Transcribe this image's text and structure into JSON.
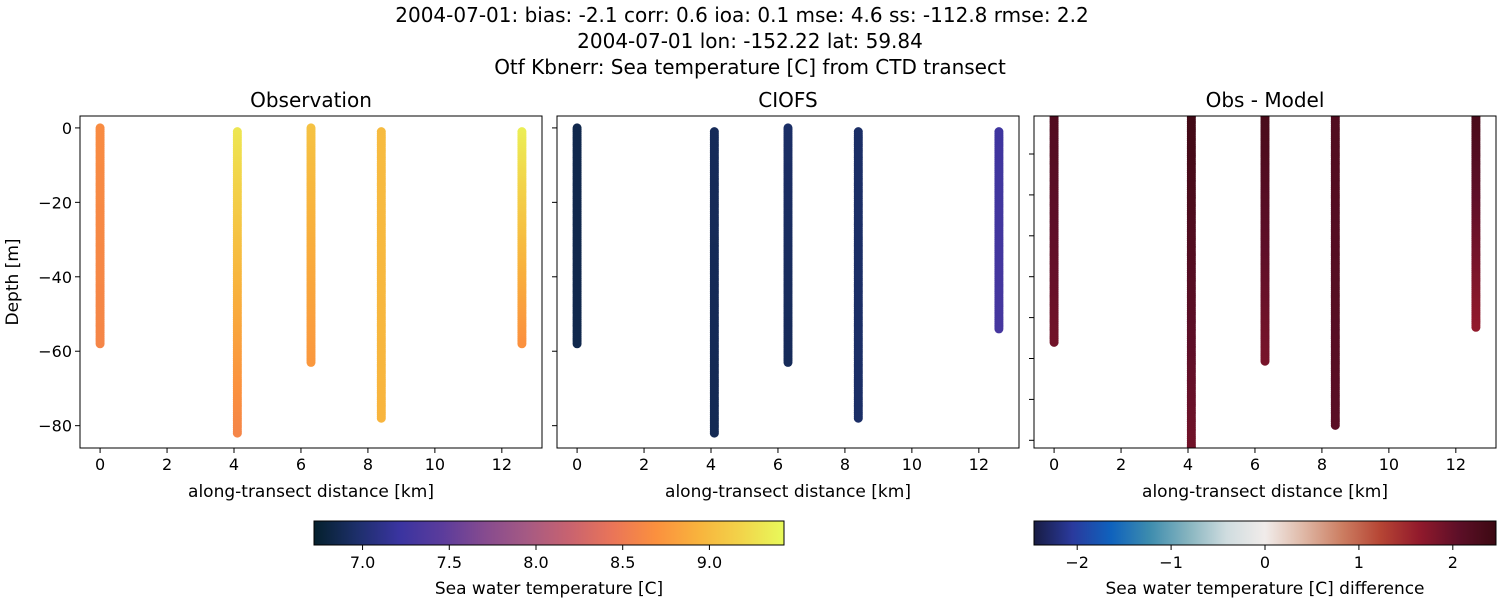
{
  "figure": {
    "title_lines": [
      "2004-07-01: bias: -2.1  corr: 0.6  ioa: 0.1  mse: 4.6  ss: -112.8  rmse: 2.2",
      "2004-07-01 lon: -152.22 lat: 59.84",
      "Otf Kbnerr: Sea temperature [C] from CTD transect"
    ]
  },
  "chart_data": [
    {
      "type": "scatter",
      "title": "Observation",
      "xlabel": "along-transect distance [km]",
      "ylabel": "Depth [m]",
      "xlim": [
        -0.6,
        13.2
      ],
      "ylim": [
        -86,
        3.2
      ],
      "xticks": [
        "0",
        "2",
        "4",
        "6",
        "8",
        "10",
        "12"
      ],
      "yticks": [
        "0",
        "−20",
        "−40",
        "−60",
        "−80"
      ],
      "colormap": "thermal",
      "profiles": [
        {
          "x": 0.0,
          "depth_top": 0,
          "depth_bottom": -58,
          "value_top": 8.65,
          "value_bottom": 8.6
        },
        {
          "x": 4.1,
          "depth_top": -1,
          "depth_bottom": -82,
          "value_top": 9.3,
          "value_bottom": 8.6
        },
        {
          "x": 6.3,
          "depth_top": 0,
          "depth_bottom": -63,
          "value_top": 9.05,
          "value_bottom": 8.75
        },
        {
          "x": 8.4,
          "depth_top": -1,
          "depth_bottom": -78,
          "value_top": 9.0,
          "value_bottom": 8.95
        },
        {
          "x": 12.6,
          "depth_top": -1,
          "depth_bottom": -58,
          "value_top": 9.35,
          "value_bottom": 8.7
        }
      ]
    },
    {
      "type": "scatter",
      "title": "CIOFS",
      "xlabel": "along-transect distance [km]",
      "xlim": [
        -0.6,
        13.2
      ],
      "ylim": [
        -86,
        3.2
      ],
      "xticks": [
        "0",
        "2",
        "4",
        "6",
        "8",
        "10",
        "12"
      ],
      "colormap": "thermal",
      "profiles": [
        {
          "x": 0.0,
          "depth_top": 0,
          "depth_bottom": -58,
          "value_top": 6.85,
          "value_bottom": 6.85
        },
        {
          "x": 4.1,
          "depth_top": -1,
          "depth_bottom": -82,
          "value_top": 6.9,
          "value_bottom": 6.88
        },
        {
          "x": 6.3,
          "depth_top": 0,
          "depth_bottom": -63,
          "value_top": 6.95,
          "value_bottom": 6.9
        },
        {
          "x": 8.4,
          "depth_top": -1,
          "depth_bottom": -78,
          "value_top": 6.95,
          "value_bottom": 6.95
        },
        {
          "x": 12.6,
          "depth_top": -1,
          "depth_bottom": -54,
          "value_top": 7.25,
          "value_bottom": 7.3
        }
      ]
    },
    {
      "type": "scatter",
      "title": "Obs - Model",
      "xlabel": "along-transect distance [km]",
      "xlim": [
        -0.6,
        13.2
      ],
      "ylim": [
        -88,
        0
      ],
      "xticks": [
        "0",
        "2",
        "4",
        "6",
        "8",
        "10",
        "12"
      ],
      "colormap": "balance",
      "profiles": [
        {
          "x": 0.0,
          "depth_top": 0,
          "depth_bottom": -60,
          "value_top": 2.2,
          "value_bottom": 1.9
        },
        {
          "x": 4.1,
          "depth_top": 0,
          "depth_bottom": -88,
          "value_top": 2.4,
          "value_bottom": 1.9
        },
        {
          "x": 6.3,
          "depth_top": 0,
          "depth_bottom": -65,
          "value_top": 2.3,
          "value_bottom": 1.85
        },
        {
          "x": 8.4,
          "depth_top": 0,
          "depth_bottom": -82,
          "value_top": 2.2,
          "value_bottom": 2.1
        },
        {
          "x": 12.6,
          "depth_top": 0,
          "depth_bottom": -56,
          "value_top": 2.3,
          "value_bottom": 1.65
        }
      ]
    }
  ],
  "colorbars": [
    {
      "label": "Sea water temperature [C]",
      "range": [
        6.72,
        9.43
      ],
      "ticks": [
        "7.0",
        "7.5",
        "8.0",
        "8.5",
        "9.0"
      ],
      "tick_values": [
        7.0,
        7.5,
        8.0,
        8.5,
        9.0
      ],
      "colormap": "thermal",
      "colors": [
        "#04202c",
        "#1d2f6a",
        "#3a34a0",
        "#5b3c9c",
        "#864b8f",
        "#a65a83",
        "#c9636f",
        "#ea7558",
        "#fb903e",
        "#f8b33d",
        "#f2d44a",
        "#e8fa5b"
      ]
    },
    {
      "label": "Sea water temperature [C] difference",
      "range": [
        -2.46,
        2.46
      ],
      "ticks": [
        "−2",
        "−1",
        "0",
        "1",
        "2"
      ],
      "tick_values": [
        -2,
        -1,
        0,
        1,
        2
      ],
      "colormap": "balance",
      "colors": [
        "#181c43",
        "#2a3a9d",
        "#0f62bd",
        "#3d8cae",
        "#86b4bf",
        "#cfdcdf",
        "#f1ecea",
        "#dfb8a6",
        "#cc7e62",
        "#b64534",
        "#921a2c",
        "#5e0f28",
        "#3c0912"
      ]
    }
  ]
}
